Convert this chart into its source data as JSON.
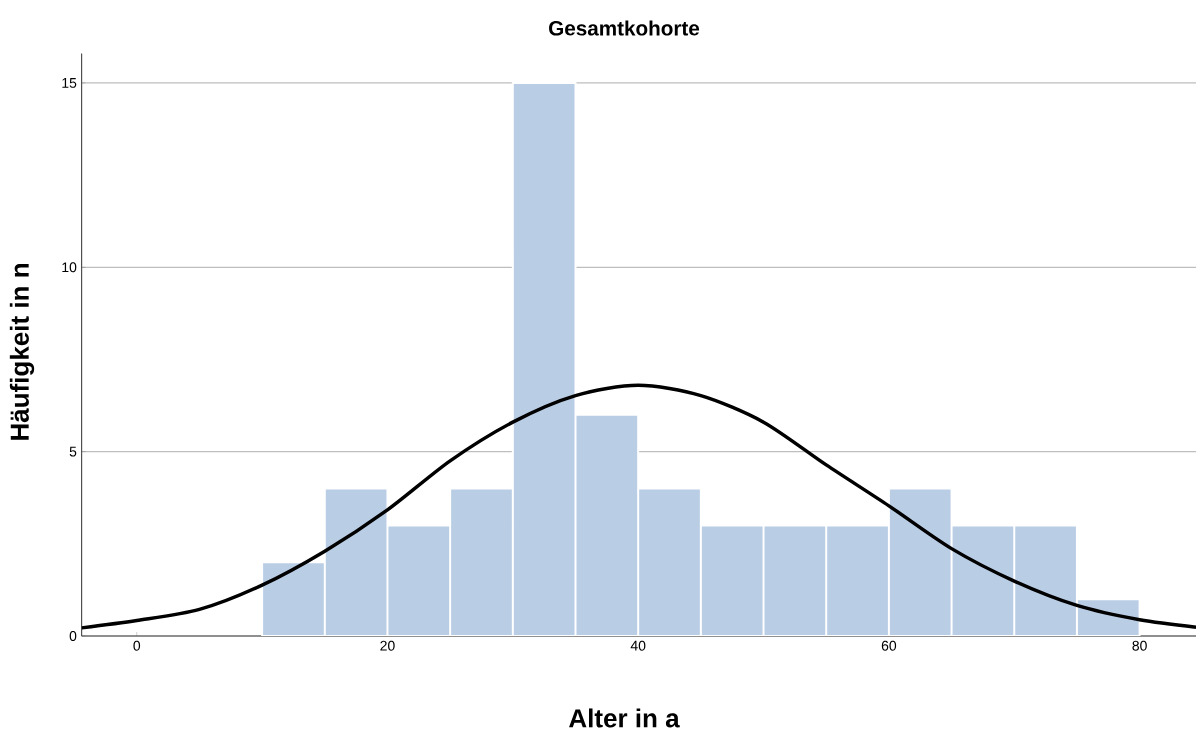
{
  "chart_data": {
    "type": "histogram",
    "title": "Gesamtkohorte",
    "xlabel": "Alter in a",
    "ylabel": "Häufigkeit in n",
    "xlim": [
      -4.4,
      84.5
    ],
    "ylim": [
      0,
      15.8
    ],
    "xticks": [
      0,
      20,
      40,
      60,
      80
    ],
    "yticks": [
      0,
      5,
      10,
      15
    ],
    "grid": "y",
    "series": [
      {
        "color": "#b9cde5",
        "bins": [
          10,
          15,
          20,
          25,
          30,
          35,
          40,
          45,
          50,
          55,
          60,
          65,
          70,
          75,
          80
        ],
        "values": [
          2,
          4,
          3,
          4,
          15,
          6,
          4,
          3,
          3,
          3,
          4,
          3,
          3,
          1
        ]
      },
      {
        "type": "line",
        "color": "#000000",
        "x": [
          -4.4,
          0,
          5,
          10,
          15,
          20,
          25,
          30,
          35,
          40,
          45,
          50,
          55,
          60,
          65,
          70,
          75,
          80,
          84.5
        ],
        "values": [
          0.22,
          0.42,
          0.72,
          1.38,
          2.3,
          3.42,
          4.75,
          5.8,
          6.52,
          6.8,
          6.52,
          5.8,
          4.64,
          3.53,
          2.37,
          1.49,
          0.83,
          0.44,
          0.24
        ]
      }
    ]
  }
}
